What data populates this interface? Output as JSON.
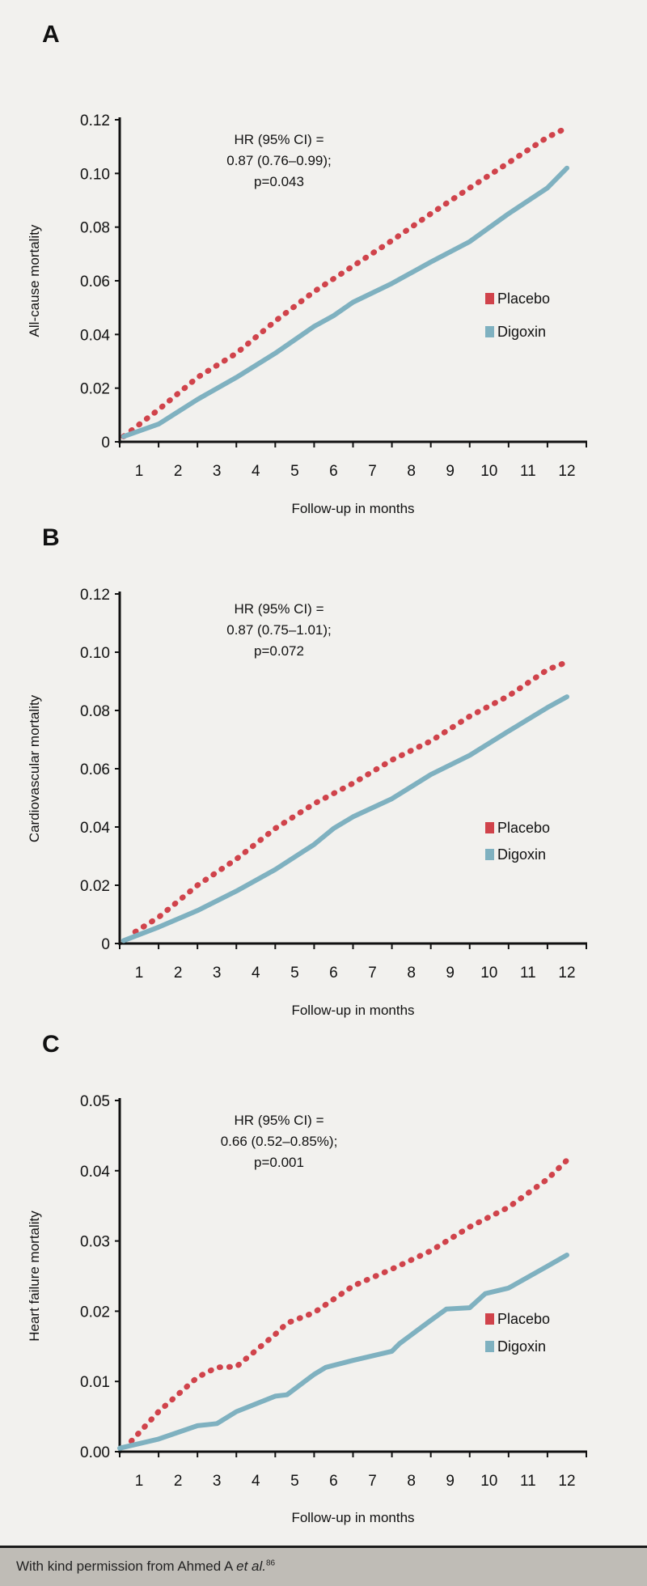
{
  "colors": {
    "placebo": "#d0434b",
    "digoxin": "#7fb1c0",
    "background": "#f2f1ee",
    "footer": "#bfbcb6"
  },
  "footer": {
    "text": "With kind permission from Ahmed A ",
    "italic": "et al.",
    "superscript": "86"
  },
  "chart_data": [
    {
      "type": "line",
      "panel_label": "A",
      "ylabel": "All-cause mortality",
      "xlabel": "Follow-up in months",
      "x_tick_labels": [
        "1",
        "2",
        "3",
        "4",
        "5",
        "6",
        "7",
        "8",
        "9",
        "10",
        "11",
        "12"
      ],
      "y_tick_labels": [
        "0",
        "0.02",
        "0.04",
        "0.06",
        "0.08",
        "0.10",
        "0.12"
      ],
      "y_ticks": [
        0,
        0.02,
        0.04,
        0.06,
        0.08,
        0.1,
        0.12
      ],
      "xlim": [
        0,
        12
      ],
      "ylim": [
        0,
        0.12
      ],
      "annotation": [
        "HR (95% CI) =",
        "0.87 (0.76–0.99);",
        "p=0.043"
      ],
      "legend": [
        "Placebo",
        "Digoxin"
      ],
      "legend_position": "right-middle",
      "series": [
        {
          "name": "Placebo",
          "style": "dotted",
          "x": [
            0.1,
            1,
            2,
            3,
            4,
            5,
            6,
            7,
            8,
            9,
            10,
            11,
            11.5
          ],
          "y": [
            0.002,
            0.012,
            0.024,
            0.033,
            0.045,
            0.056,
            0.0655,
            0.075,
            0.085,
            0.0946,
            0.104,
            0.1135,
            0.117
          ]
        },
        {
          "name": "Digoxin",
          "style": "solid",
          "x": [
            0.1,
            1,
            2,
            3,
            4,
            5,
            5.5,
            6,
            7,
            8,
            9,
            10,
            11,
            11.5
          ],
          "y": [
            0.002,
            0.0066,
            0.0158,
            0.024,
            0.033,
            0.043,
            0.047,
            0.052,
            0.059,
            0.067,
            0.0746,
            0.085,
            0.0946,
            0.102
          ]
        }
      ]
    },
    {
      "type": "line",
      "panel_label": "B",
      "ylabel": "Cardiovascular mortality",
      "xlabel": "Follow-up in months",
      "x_tick_labels": [
        "1",
        "2",
        "3",
        "4",
        "5",
        "6",
        "7",
        "8",
        "9",
        "10",
        "11",
        "12"
      ],
      "y_tick_labels": [
        "0",
        "0.02",
        "0.04",
        "0.06",
        "0.08",
        "0.10",
        "0.12"
      ],
      "y_ticks": [
        0,
        0.02,
        0.04,
        0.06,
        0.08,
        0.1,
        0.12
      ],
      "xlim": [
        0,
        12
      ],
      "ylim": [
        0,
        0.12
      ],
      "annotation": [
        "HR (95% CI) =",
        "0.87 (0.75–1.01);",
        "p=0.072"
      ],
      "legend": [
        "Placebo",
        "Digoxin"
      ],
      "legend_position": "right-middle",
      "series": [
        {
          "name": "Placebo",
          "style": "dotted",
          "x": [
            0.4,
            1,
            2,
            3,
            4,
            5,
            6,
            7,
            8,
            9,
            10,
            11,
            11.5
          ],
          "y": [
            0.004,
            0.009,
            0.02,
            0.029,
            0.0395,
            0.048,
            0.055,
            0.063,
            0.0695,
            0.078,
            0.085,
            0.094,
            0.0966
          ]
        },
        {
          "name": "Digoxin",
          "style": "solid",
          "x": [
            0.1,
            1,
            2,
            3,
            4,
            5,
            5.5,
            6,
            7,
            8,
            9,
            10,
            11,
            11.5
          ],
          "y": [
            0.001,
            0.0056,
            0.0113,
            0.018,
            0.0254,
            0.034,
            0.0395,
            0.0435,
            0.0497,
            0.058,
            0.0646,
            0.0729,
            0.081,
            0.0847
          ]
        }
      ]
    },
    {
      "type": "line",
      "panel_label": "C",
      "ylabel": "Heart failure mortality",
      "xlabel": "Follow-up in months",
      "x_tick_labels": [
        "1",
        "2",
        "3",
        "4",
        "5",
        "6",
        "7",
        "8",
        "9",
        "10",
        "11",
        "12"
      ],
      "y_tick_labels": [
        "0.00",
        "0.01",
        "0.02",
        "0.03",
        "0.04",
        "0.05"
      ],
      "y_ticks": [
        0,
        0.01,
        0.02,
        0.03,
        0.04,
        0.05
      ],
      "xlim": [
        0,
        12
      ],
      "ylim": [
        0,
        0.05
      ],
      "annotation": [
        "HR (95% CI) =",
        "0.66 (0.52–0.85%);",
        "p=0.001"
      ],
      "legend": [
        "Placebo",
        "Digoxin"
      ],
      "legend_position": "right-middle",
      "series": [
        {
          "name": "Placebo",
          "style": "dotted",
          "x": [
            0.3,
            1,
            2,
            2.5,
            3,
            4,
            4.3,
            5,
            6,
            7,
            8,
            9,
            10,
            11,
            11.5
          ],
          "y": [
            0.0015,
            0.0057,
            0.0106,
            0.012,
            0.0121,
            0.0167,
            0.0183,
            0.0198,
            0.0236,
            0.026,
            0.0286,
            0.032,
            0.0348,
            0.0388,
            0.0415
          ]
        },
        {
          "name": "Digoxin",
          "style": "solid",
          "x": [
            0,
            1,
            2,
            2.5,
            3,
            4,
            4.3,
            5,
            5.3,
            6,
            7,
            7.2,
            8,
            8.4,
            9,
            9.4,
            10,
            11,
            11.5
          ],
          "y": [
            0.0005,
            0.0018,
            0.0037,
            0.004,
            0.0057,
            0.0079,
            0.0081,
            0.011,
            0.012,
            0.013,
            0.0143,
            0.0154,
            0.0187,
            0.0203,
            0.0205,
            0.0225,
            0.0233,
            0.0264,
            0.028
          ]
        }
      ]
    }
  ]
}
